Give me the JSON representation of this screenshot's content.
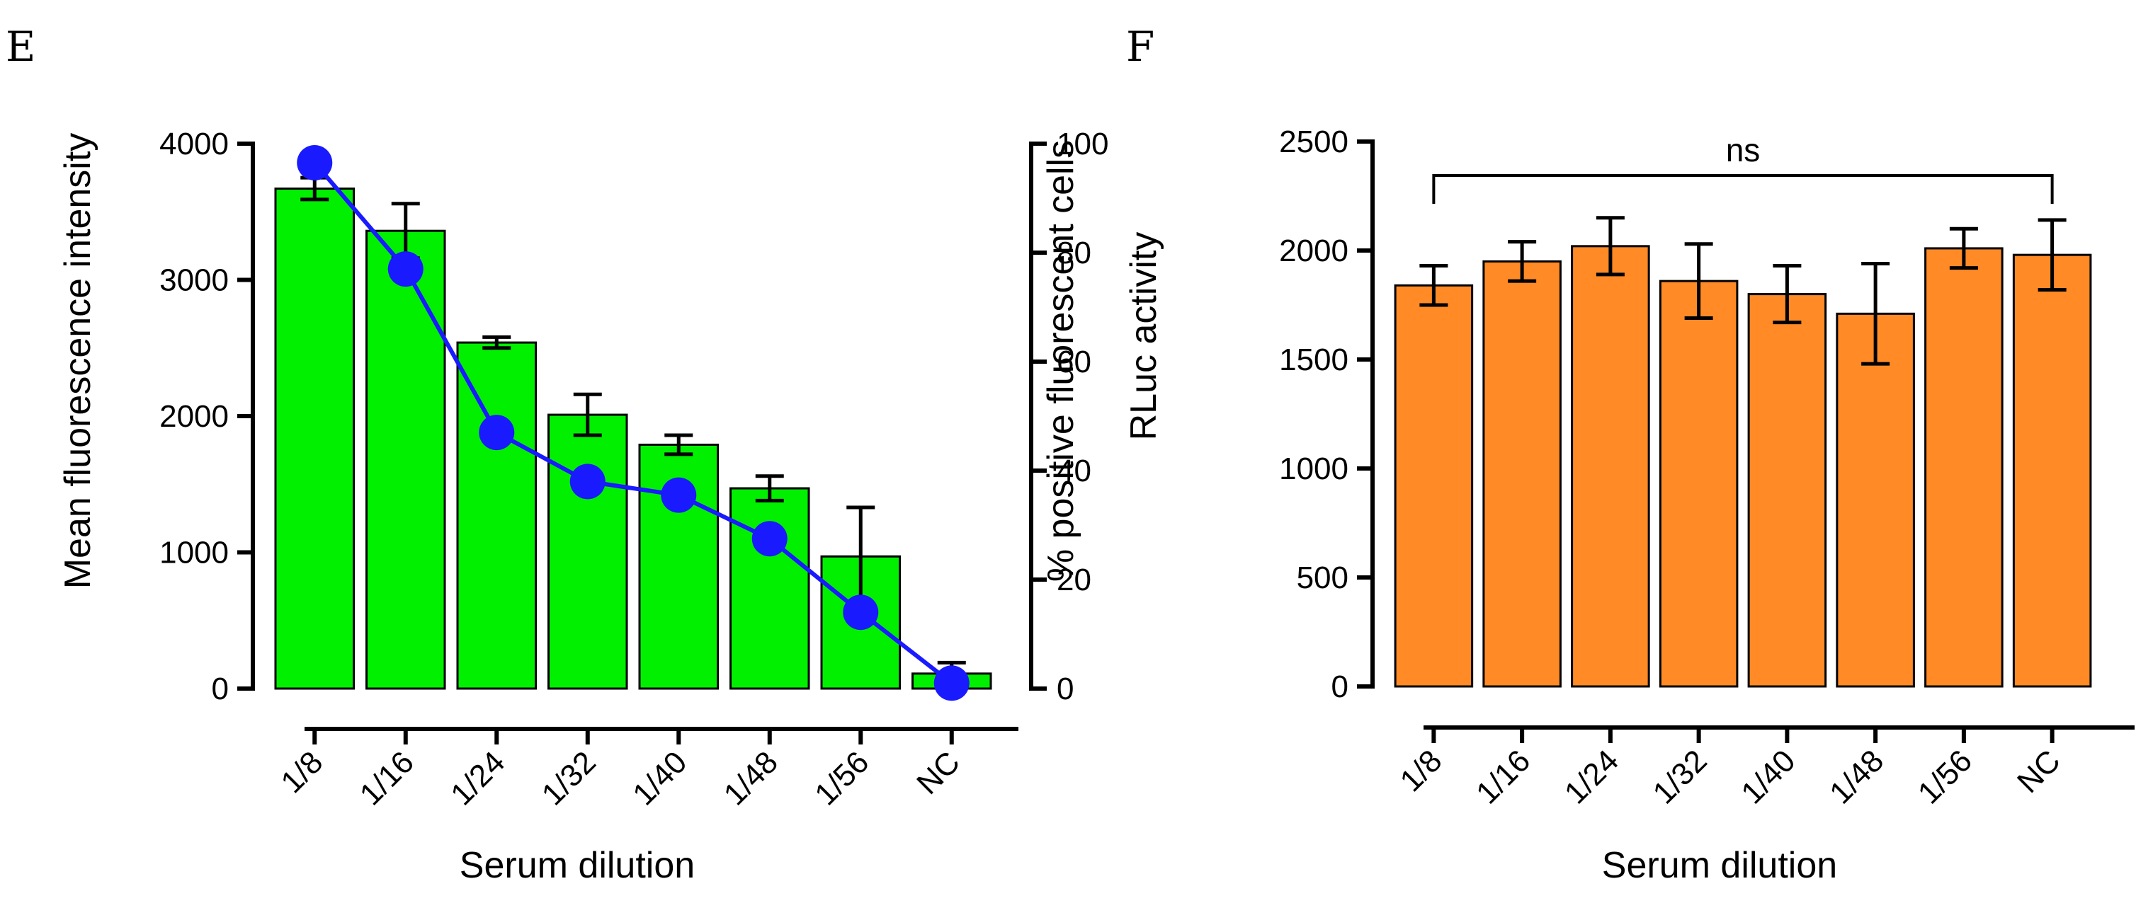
{
  "colors": {
    "panel_e_bar": "#00f000",
    "panel_e_line": "#1a1aff",
    "panel_f_bar": "#ff8a26",
    "axis": "#000000"
  },
  "chart_data": [
    {
      "panel": "E",
      "type": "bar",
      "categories": [
        "1/8",
        "1/16",
        "1/24",
        "1/32",
        "1/40",
        "1/48",
        "1/56",
        "NC"
      ],
      "xlabel": "Serum dilution",
      "ylabel": "Mean fluorescence intensity",
      "y2label": "% positive fluorescent cells",
      "ylim": [
        0,
        4000
      ],
      "yticks": [
        0,
        1000,
        2000,
        3000,
        4000
      ],
      "y2lim": [
        0,
        100
      ],
      "y2ticks": [
        0,
        20,
        40,
        60,
        80,
        100
      ],
      "grid": false,
      "series": [
        {
          "type": "bar",
          "axis": "left",
          "values": [
            3670,
            3360,
            2540,
            2010,
            1790,
            1470,
            970,
            110
          ],
          "error": [
            80,
            200,
            40,
            150,
            70,
            90,
            360,
            80
          ]
        },
        {
          "type": "line",
          "axis": "right",
          "values": [
            96.5,
            77,
            47,
            38,
            35.5,
            27.5,
            14,
            1
          ]
        }
      ]
    },
    {
      "panel": "F",
      "type": "bar",
      "categories": [
        "1/8",
        "1/16",
        "1/24",
        "1/32",
        "1/40",
        "1/48",
        "1/56",
        "NC"
      ],
      "xlabel": "Serum dilution",
      "ylabel": "RLuc activity",
      "ylim": [
        0,
        2500
      ],
      "yticks": [
        0,
        500,
        1000,
        1500,
        2000,
        2500
      ],
      "grid": false,
      "annotation": "ns",
      "series": [
        {
          "type": "bar",
          "values": [
            1840,
            1950,
            2020,
            1860,
            1800,
            1710,
            2010,
            1980
          ],
          "error": [
            90,
            90,
            130,
            170,
            130,
            230,
            90,
            160
          ]
        }
      ]
    }
  ]
}
